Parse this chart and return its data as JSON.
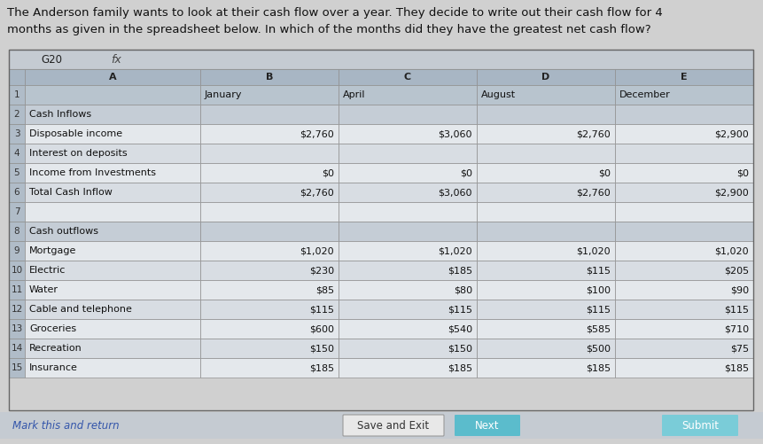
{
  "title": "The Anderson family wants to look at their cash flow over a year. They decide to write out their cash flow for 4\nmonths as given in the spreadsheet below. In which of the months did they have the greatest net cash flow?",
  "toolbar_text": "G20",
  "rows": [
    {
      "num": "1",
      "label": "",
      "values": [
        "January",
        "April",
        "August",
        "December"
      ],
      "is_header_row": true
    },
    {
      "num": "2",
      "label": "Cash Inflows",
      "values": [
        "",
        "",
        "",
        ""
      ],
      "is_section": true
    },
    {
      "num": "3",
      "label": "Disposable income",
      "values": [
        "$2,760",
        "$3,060",
        "$2,760",
        "$2,900"
      ]
    },
    {
      "num": "4",
      "label": "Interest on deposits",
      "values": [
        "",
        "",
        "",
        ""
      ]
    },
    {
      "num": "5",
      "label": "Income from Investments",
      "values": [
        "$0",
        "$0",
        "$0",
        "$0"
      ]
    },
    {
      "num": "6",
      "label": "Total Cash Inflow",
      "values": [
        "$2,760",
        "$3,060",
        "$2,760",
        "$2,900"
      ]
    },
    {
      "num": "7",
      "label": "",
      "values": [
        "",
        "",
        "",
        ""
      ]
    },
    {
      "num": "8",
      "label": "Cash outflows",
      "values": [
        "",
        "",
        "",
        ""
      ],
      "is_section": true
    },
    {
      "num": "9",
      "label": "Mortgage",
      "values": [
        "$1,020",
        "$1,020",
        "$1,020",
        "$1,020"
      ]
    },
    {
      "num": "10",
      "label": "Electric",
      "values": [
        "$230",
        "$185",
        "$115",
        "$205"
      ]
    },
    {
      "num": "11",
      "label": "Water",
      "values": [
        "$85",
        "$80",
        "$100",
        "$90"
      ]
    },
    {
      "num": "12",
      "label": "Cable and telephone",
      "values": [
        "$115",
        "$115",
        "$115",
        "$115"
      ]
    },
    {
      "num": "13",
      "label": "Groceries",
      "values": [
        "$600",
        "$540",
        "$585",
        "$710"
      ]
    },
    {
      "num": "14",
      "label": "Recreation",
      "values": [
        "$150",
        "$150",
        "$500",
        "$75"
      ]
    },
    {
      "num": "15",
      "label": "Insurance",
      "values": [
        "$185",
        "$185",
        "$185",
        "$185"
      ]
    }
  ],
  "bottom_link": "Mark this and return",
  "btn_save": "Save and Exit",
  "btn_next": "Next",
  "btn_submit": "Submit",
  "bg_color": "#d0d0d0",
  "header_row_bg": "#b8c4ce",
  "section_bg": "#c5cdd6",
  "data_row_bg": "#e4e8ec",
  "alt_row_bg": "#d8dde3",
  "col_header_bg": "#a8b6c4",
  "toolbar_bg": "#c5cbd2",
  "grid_color": "#909090",
  "row_num_bg": "#b0bcc8",
  "btn_next_color": "#5bbccc",
  "btn_submit_color": "#7accd8",
  "btn_save_color": "#e8e8e8",
  "text_color": "#111111",
  "link_color": "#3355aa"
}
